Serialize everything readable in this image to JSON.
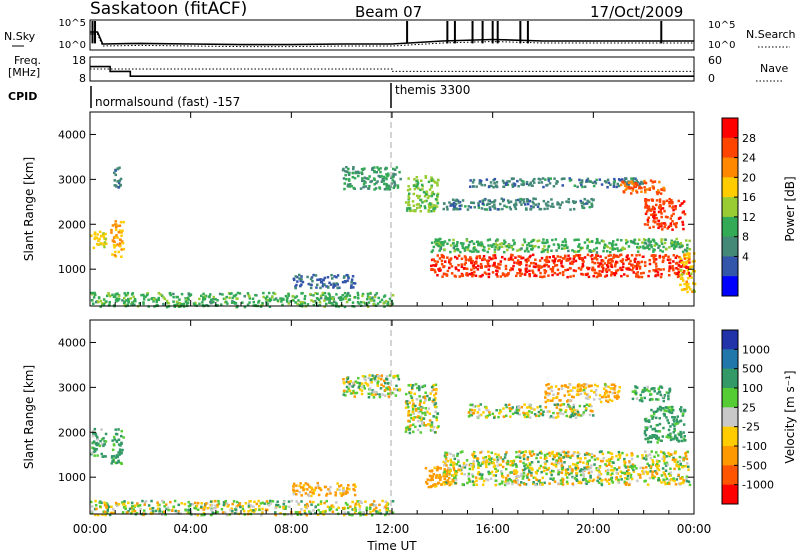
{
  "header": {
    "station": "Saskatoon (fitACF)",
    "beam": "Beam 07",
    "date": "17/Oct/2009"
  },
  "noise_panel": {
    "left_label": "N.Sky",
    "left_ticks": [
      "10^5",
      "10^0"
    ],
    "right_label": "N.Search",
    "right_ticks": [
      "10^5",
      "10^0"
    ]
  },
  "freq_panel": {
    "left_label_line1": "Freq.",
    "left_label_line2": "[MHz]",
    "left_ticks": [
      "18",
      "8"
    ],
    "right_label": "Nave",
    "right_ticks": [
      "60",
      "0"
    ]
  },
  "cpid": {
    "label": "CPID",
    "mode1": "normalsound (fast) -157",
    "mode2": "themis 3300",
    "switch_time": "12:00"
  },
  "power_panel": {
    "ylabel": "Slant Range [km]",
    "yticks": [
      "4000",
      "3000",
      "2000",
      "1000"
    ],
    "colorbar_label": "Power [dB]",
    "colorbar_ticks": [
      "28",
      "24",
      "20",
      "16",
      "12",
      "8",
      "4"
    ],
    "colorbar_colors": [
      "#ff0000",
      "#ff4400",
      "#ff8800",
      "#ffcc00",
      "#99cc33",
      "#33aa55",
      "#448877",
      "#3355aa",
      "#0000ff"
    ]
  },
  "velocity_panel": {
    "ylabel": "Slant Range [km]",
    "yticks": [
      "4000",
      "3000",
      "2000",
      "1000"
    ],
    "colorbar_label": "Velocity [m s⁻¹]",
    "colorbar_ticks": [
      "1000",
      "500",
      "100",
      "25",
      "-25",
      "-100",
      "-500",
      "-1000"
    ],
    "colorbar_colors": [
      "#2233aa",
      "#2277aa",
      "#339966",
      "#55cc33",
      "#c8c8c8",
      "#ffcc00",
      "#ff9900",
      "#ff5500",
      "#ff0000"
    ]
  },
  "xaxis": {
    "ticks": [
      "00:00",
      "04:00",
      "08:00",
      "12:00",
      "16:00",
      "20:00",
      "00:00"
    ],
    "label": "Time UT"
  },
  "chart_data": [
    {
      "type": "heatmap",
      "title": "Power [dB]",
      "xlabel": "Time UT",
      "ylabel": "Slant Range [km]",
      "xlim_hours": [
        0,
        24
      ],
      "ylim": [
        180,
        4500
      ],
      "clim": [
        0,
        30
      ],
      "regions": [
        {
          "t0": 0.0,
          "t1": 0.6,
          "r0": 1450,
          "r1": 1900,
          "value": 18
        },
        {
          "t0": 0.8,
          "t1": 1.3,
          "r0": 1300,
          "r1": 2100,
          "value": 20
        },
        {
          "t0": 0.9,
          "t1": 1.2,
          "r0": 2800,
          "r1": 3300,
          "value": 8
        },
        {
          "t0": 0.0,
          "t1": 12.0,
          "r0": 180,
          "r1": 500,
          "value": 12
        },
        {
          "t0": 8.0,
          "t1": 10.5,
          "r0": 600,
          "r1": 900,
          "value": 6
        },
        {
          "t0": 10.0,
          "t1": 12.3,
          "r0": 2800,
          "r1": 3300,
          "value": 10
        },
        {
          "t0": 12.5,
          "t1": 13.8,
          "r0": 2300,
          "r1": 3100,
          "value": 14
        },
        {
          "t0": 13.5,
          "t1": 23.8,
          "r0": 850,
          "r1": 1350,
          "value": 26
        },
        {
          "t0": 13.5,
          "t1": 23.8,
          "r0": 1400,
          "r1": 1700,
          "value": 12
        },
        {
          "t0": 14.0,
          "t1": 20.0,
          "r0": 2350,
          "r1": 2600,
          "value": 8
        },
        {
          "t0": 15.0,
          "t1": 22.0,
          "r0": 2850,
          "r1": 3050,
          "value": 8
        },
        {
          "t0": 21.0,
          "t1": 22.8,
          "r0": 2700,
          "r1": 3000,
          "value": 24
        },
        {
          "t0": 22.0,
          "t1": 23.6,
          "r0": 1900,
          "r1": 2600,
          "value": 26
        },
        {
          "t0": 23.4,
          "t1": 24.0,
          "r0": 500,
          "r1": 1400,
          "value": 18
        }
      ]
    },
    {
      "type": "heatmap",
      "title": "Velocity [m s⁻¹]",
      "xlabel": "Time UT",
      "ylabel": "Slant Range [km]",
      "xlim_hours": [
        0,
        24
      ],
      "ylim": [
        180,
        4500
      ],
      "clim": [
        -1000,
        1000
      ],
      "regions": [
        {
          "t0": 0.0,
          "t1": 0.6,
          "r0": 1450,
          "r1": 2100,
          "value": 150
        },
        {
          "t0": 0.8,
          "t1": 1.3,
          "r0": 1300,
          "r1": 2100,
          "value": 150
        },
        {
          "t0": 0.0,
          "t1": 12.0,
          "r0": 180,
          "r1": 500,
          "value": 0
        },
        {
          "t0": 8.0,
          "t1": 10.5,
          "r0": 600,
          "r1": 900,
          "value": -150
        },
        {
          "t0": 10.0,
          "t1": 12.3,
          "r0": 2800,
          "r1": 3300,
          "value": 0
        },
        {
          "t0": 12.5,
          "t1": 13.8,
          "r0": 2000,
          "r1": 3100,
          "value": 0
        },
        {
          "t0": 13.3,
          "t1": 14.5,
          "r0": 800,
          "r1": 1300,
          "value": -200
        },
        {
          "t0": 14.0,
          "t1": 23.8,
          "r0": 850,
          "r1": 1600,
          "value": 0
        },
        {
          "t0": 15.0,
          "t1": 20.0,
          "r0": 2350,
          "r1": 2650,
          "value": 0
        },
        {
          "t0": 18.0,
          "t1": 21.0,
          "r0": 2700,
          "r1": 3100,
          "value": -120
        },
        {
          "t0": 21.5,
          "t1": 23.0,
          "r0": 2700,
          "r1": 3050,
          "value": 150
        },
        {
          "t0": 22.0,
          "t1": 23.6,
          "r0": 1800,
          "r1": 2600,
          "value": 200
        }
      ]
    },
    {
      "type": "line",
      "title": "N.Sky / N.Search",
      "x_hours": [
        0,
        0.3,
        0.5,
        2,
        4,
        6,
        8,
        10,
        12,
        13,
        14,
        16,
        18,
        20,
        22,
        24
      ],
      "y_fraction": [
        0.6,
        0.6,
        0.2,
        0.22,
        0.2,
        0.18,
        0.18,
        0.2,
        0.2,
        0.25,
        0.3,
        0.35,
        0.3,
        0.3,
        0.3,
        0.3
      ]
    },
    {
      "type": "line",
      "title": "Freq. / Nave",
      "freq_mhz": [
        {
          "t0": 0,
          "t1": 0.8,
          "value": 14
        },
        {
          "t0": 0.8,
          "t1": 1.6,
          "value": 12
        },
        {
          "t0": 1.6,
          "t1": 24,
          "value": 10
        }
      ],
      "nave": [
        {
          "t0": 0,
          "t1": 12,
          "value": 30
        },
        {
          "t0": 12,
          "t1": 24,
          "value": 24
        }
      ]
    }
  ]
}
